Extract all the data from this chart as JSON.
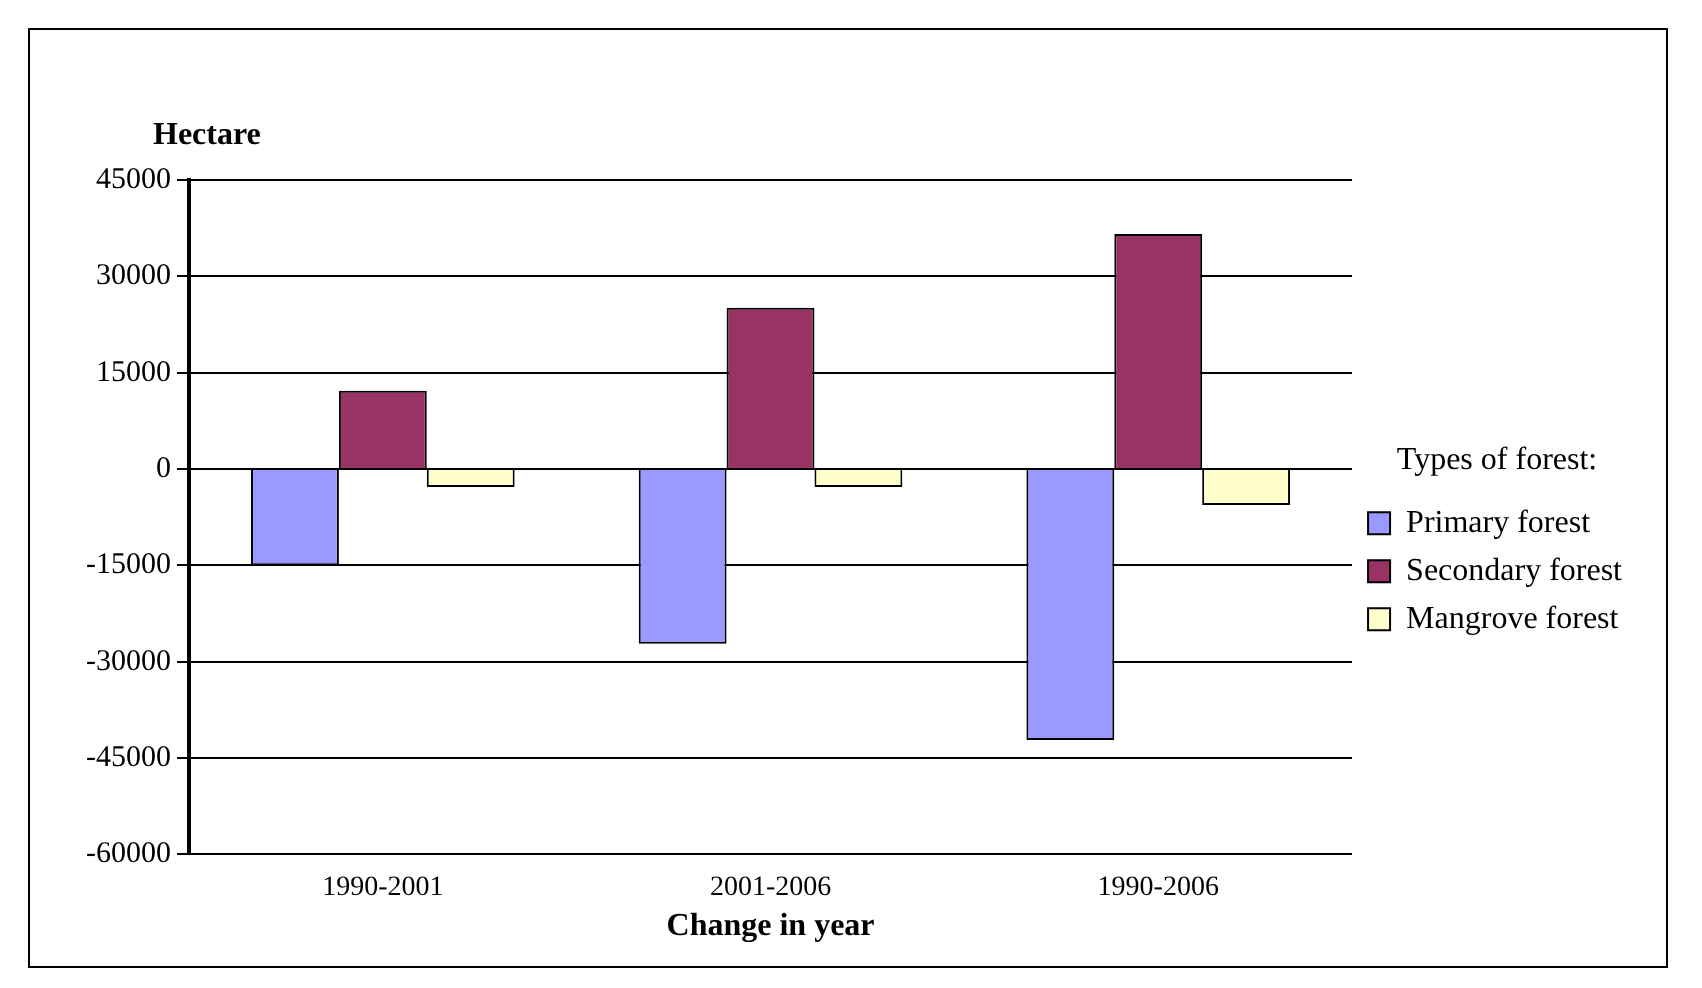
{
  "chart_data": {
    "type": "bar",
    "xlabel": "Change in year",
    "ylabel": "Hectare",
    "legend_title": "Types of forest:",
    "categories": [
      "1990-2001",
      "2001-2006",
      "1990-2006"
    ],
    "series": [
      {
        "name": "Primary forest",
        "color": "#9999ff",
        "values": [
          -15000,
          -27200,
          -42200
        ]
      },
      {
        "name": "Secondary forest",
        "color": "#993366",
        "values": [
          12200,
          25100,
          36600
        ]
      },
      {
        "name": "Mangrove forest",
        "color": "#ffffcc",
        "values": [
          -2800,
          -2800,
          -5600
        ]
      }
    ],
    "ylim": [
      -60000,
      45000
    ],
    "yticks": [
      -60000,
      -45000,
      -30000,
      -15000,
      0,
      15000,
      30000,
      45000
    ],
    "grid": "y",
    "legend": "right"
  }
}
